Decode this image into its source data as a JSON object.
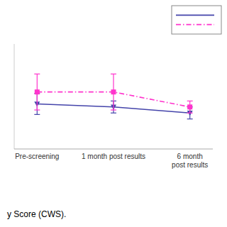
{
  "chart_data": {
    "type": "line",
    "categories": [
      "Pre-screening",
      "1 month post results",
      "6 month\npost results"
    ],
    "series": [
      {
        "color": "#4444aa",
        "marker": "triangle-down",
        "line_style": "solid",
        "values": [
          3.6,
          3.58,
          3.54
        ],
        "errors": [
          0.07,
          0.04,
          0.04
        ]
      },
      {
        "color": "#ff33cc",
        "marker": "square",
        "line_style": "dashdot",
        "values": [
          3.68,
          3.68,
          3.58
        ],
        "errors": [
          0.12,
          0.12,
          0.04
        ]
      }
    ],
    "ylim": [
      3.3,
      4.0
    ],
    "tick_labels": "x",
    "grid": false,
    "legend": "upper right",
    "annotations": [
      "y Score (CWS)."
    ]
  }
}
